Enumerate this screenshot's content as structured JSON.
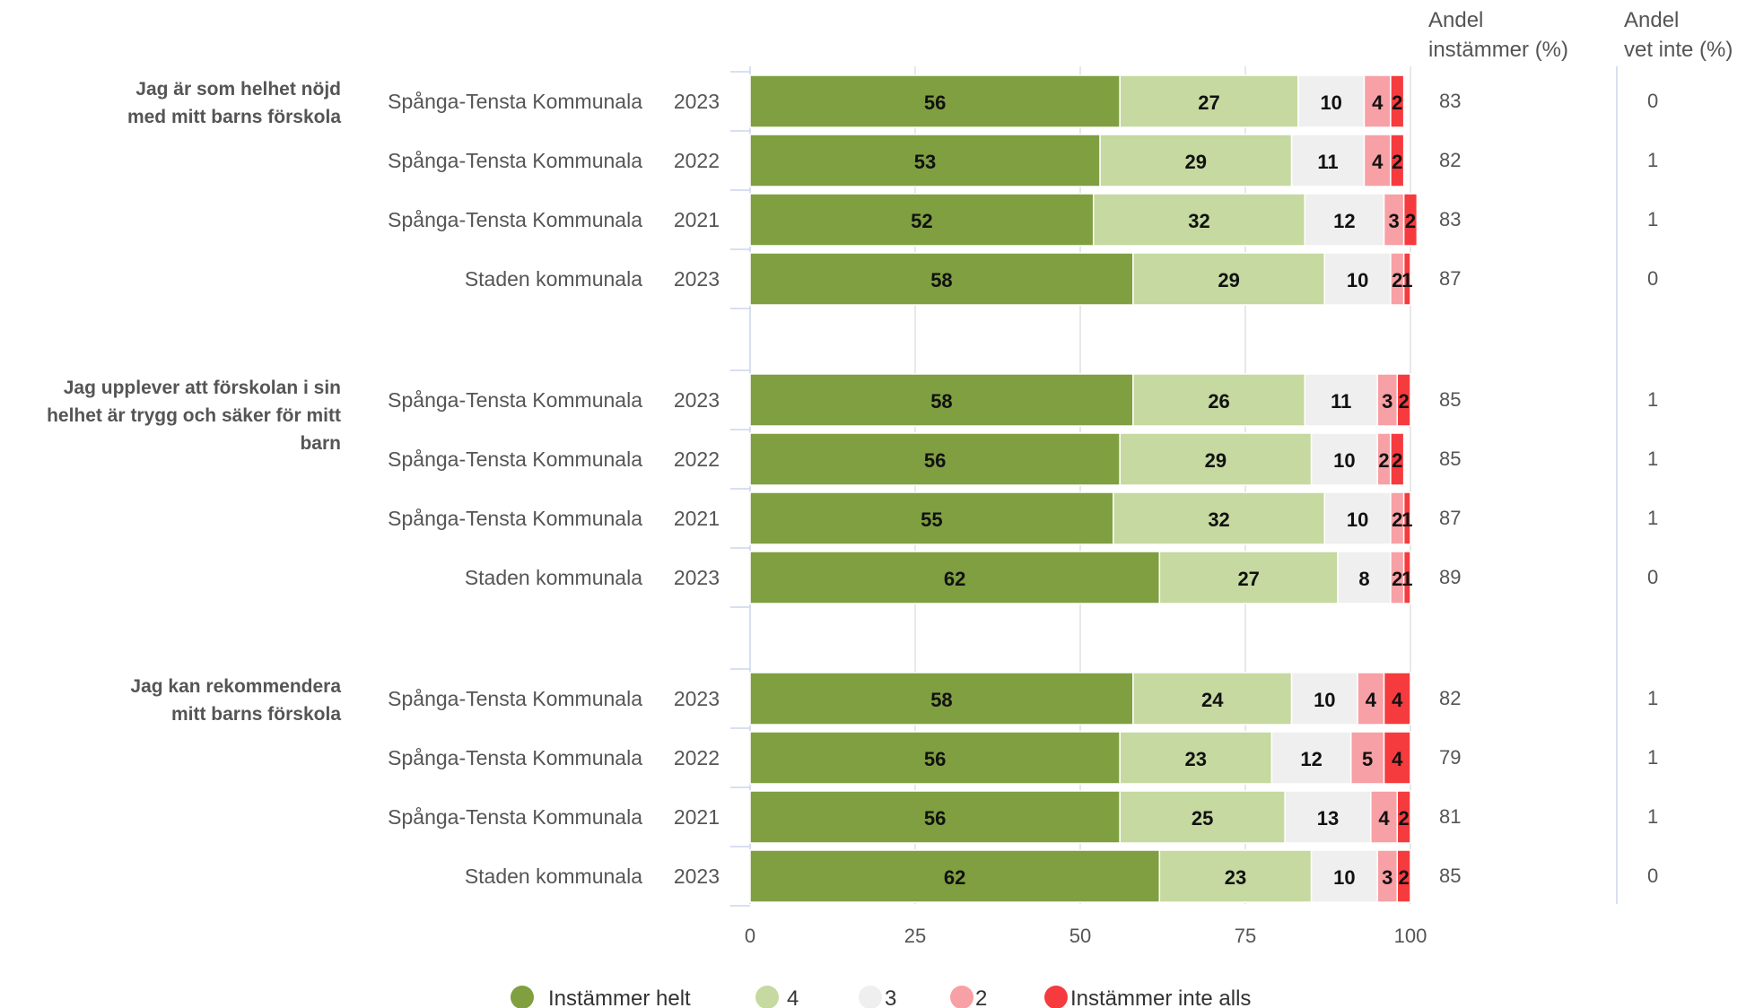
{
  "chart_data": {
    "type": "bar",
    "orientation": "horizontal",
    "stacked": true,
    "xlim": [
      0,
      100
    ],
    "xticks": [
      "0",
      "25",
      "50",
      "75",
      "100"
    ],
    "grid": true,
    "legend_position": "bottom",
    "column_headers": {
      "share_agree": [
        "Andel",
        "instämmer (%)"
      ],
      "share_dont_know": [
        "Andel",
        "vet inte (%)"
      ]
    },
    "series": [
      {
        "name": "Instämmer helt",
        "color": "#7f9f41"
      },
      {
        "name": "4",
        "color": "#c5d9a0"
      },
      {
        "name": "3",
        "color": "#efefef"
      },
      {
        "name": "2",
        "color": "#f7a0a5"
      },
      {
        "name": "Instämmer inte alls",
        "color": "#f53b3e"
      }
    ],
    "groups": [
      {
        "question": [
          "Jag är som helhet nöjd",
          "med mitt barns förskola"
        ],
        "rows": [
          {
            "unit": "Spånga-Tensta Kommunala",
            "year": "2023",
            "values": [
              56,
              27,
              10,
              4,
              2
            ],
            "share_agree": "83",
            "share_dont_know": "0"
          },
          {
            "unit": "Spånga-Tensta Kommunala",
            "year": "2022",
            "values": [
              53,
              29,
              11,
              4,
              2
            ],
            "share_agree": "82",
            "share_dont_know": "1"
          },
          {
            "unit": "Spånga-Tensta Kommunala",
            "year": "2021",
            "values": [
              52,
              32,
              12,
              3,
              2
            ],
            "share_agree": "83",
            "share_dont_know": "1"
          },
          {
            "unit": "Staden kommunala",
            "year": "2023",
            "values": [
              58,
              29,
              10,
              2,
              1
            ],
            "share_agree": "87",
            "share_dont_know": "0"
          }
        ]
      },
      {
        "question": [
          "Jag upplever att förskolan i sin",
          "helhet är trygg och säker för mitt",
          "barn"
        ],
        "rows": [
          {
            "unit": "Spånga-Tensta Kommunala",
            "year": "2023",
            "values": [
              58,
              26,
              11,
              3,
              2
            ],
            "share_agree": "85",
            "share_dont_know": "1"
          },
          {
            "unit": "Spånga-Tensta Kommunala",
            "year": "2022",
            "values": [
              56,
              29,
              10,
              2,
              2
            ],
            "share_agree": "85",
            "share_dont_know": "1"
          },
          {
            "unit": "Spånga-Tensta Kommunala",
            "year": "2021",
            "values": [
              55,
              32,
              10,
              2,
              1
            ],
            "share_agree": "87",
            "share_dont_know": "1"
          },
          {
            "unit": "Staden kommunala",
            "year": "2023",
            "values": [
              62,
              27,
              8,
              2,
              1
            ],
            "share_agree": "89",
            "share_dont_know": "0"
          }
        ]
      },
      {
        "question": [
          "Jag kan rekommendera",
          "mitt barns förskola"
        ],
        "rows": [
          {
            "unit": "Spånga-Tensta Kommunala",
            "year": "2023",
            "values": [
              58,
              24,
              10,
              4,
              4
            ],
            "share_agree": "82",
            "share_dont_know": "1"
          },
          {
            "unit": "Spånga-Tensta Kommunala",
            "year": "2022",
            "values": [
              56,
              23,
              12,
              5,
              4
            ],
            "share_agree": "79",
            "share_dont_know": "1"
          },
          {
            "unit": "Spånga-Tensta Kommunala",
            "year": "2021",
            "values": [
              56,
              25,
              13,
              4,
              2
            ],
            "share_agree": "81",
            "share_dont_know": "1"
          },
          {
            "unit": "Staden kommunala",
            "year": "2023",
            "values": [
              62,
              23,
              10,
              3,
              2
            ],
            "share_agree": "85",
            "share_dont_know": "0"
          }
        ]
      }
    ]
  }
}
